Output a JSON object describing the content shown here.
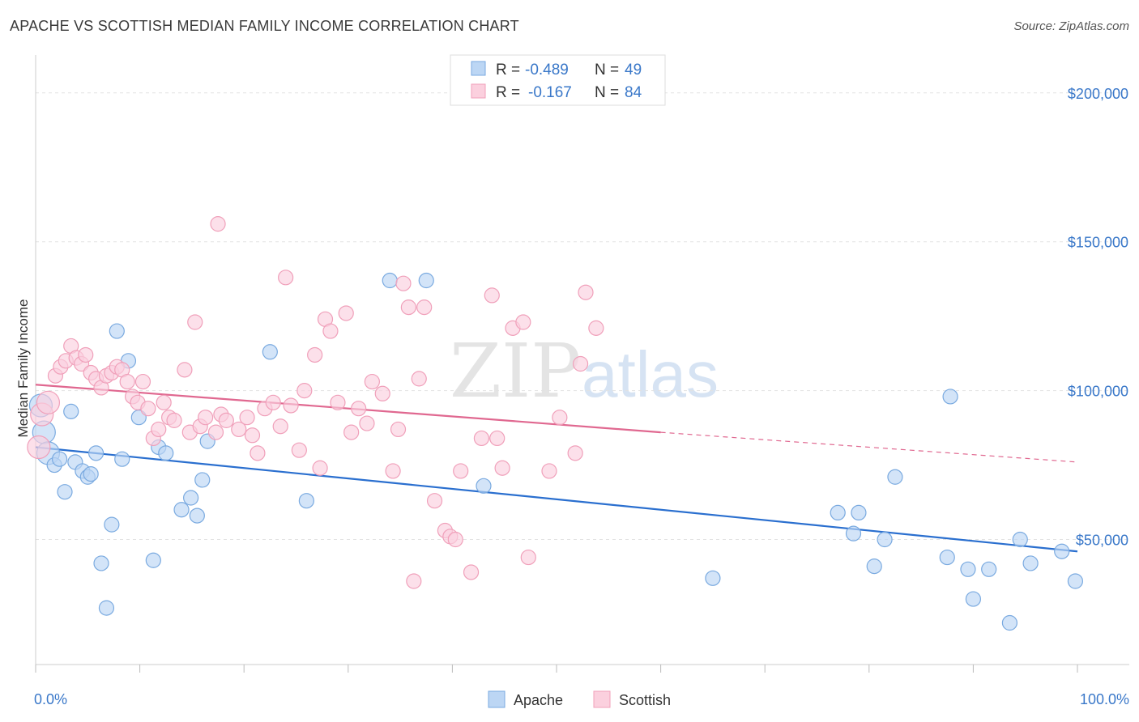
{
  "title": "APACHE VS SCOTTISH MEDIAN FAMILY INCOME CORRELATION CHART",
  "source": "Source: ZipAtlas.com",
  "watermark": {
    "zip": "ZIP",
    "atlas": "atlas"
  },
  "legend": {
    "rows": [
      {
        "r_label": "R =",
        "r_value": "-0.489",
        "n_label": "N =",
        "n_value": "49",
        "color": "#a8c8f0"
      },
      {
        "r_label": "R =",
        "r_value": "-0.167",
        "n_label": "N =",
        "n_value": "84",
        "color": "#f5b8cc"
      }
    ]
  },
  "chart_data": {
    "type": "scatter",
    "title": "APACHE VS SCOTTISH MEDIAN FAMILY INCOME CORRELATION CHART",
    "xlabel": "",
    "ylabel": "Median Family Income",
    "xlim": [
      0,
      100
    ],
    "ylim": [
      8000,
      210000
    ],
    "x_tick_labels": [
      "0.0%",
      "100.0%"
    ],
    "y_ticks": [
      50000,
      100000,
      150000,
      200000
    ],
    "y_tick_labels": [
      "$50,000",
      "$100,000",
      "$150,000",
      "$200,000"
    ],
    "grid": true,
    "legend_position": "top-center",
    "series": [
      {
        "name": "Apache",
        "color": "#7aaae0",
        "fill": "#bcd6f4",
        "trend": {
          "x": [
            0,
            100
          ],
          "y": [
            81000,
            46000
          ],
          "line_color": "#2a6fcf"
        },
        "points": [
          [
            0.5,
            95000
          ],
          [
            0.8,
            86000
          ],
          [
            1.2,
            79000
          ],
          [
            1.8,
            75000
          ],
          [
            2.3,
            77000
          ],
          [
            2.8,
            66000
          ],
          [
            3.4,
            93000
          ],
          [
            3.8,
            76000
          ],
          [
            4.5,
            73000
          ],
          [
            5.0,
            71000
          ],
          [
            5.3,
            72000
          ],
          [
            5.8,
            79000
          ],
          [
            6.3,
            42000
          ],
          [
            6.8,
            27000
          ],
          [
            7.3,
            55000
          ],
          [
            7.8,
            120000
          ],
          [
            8.3,
            77000
          ],
          [
            8.9,
            110000
          ],
          [
            9.9,
            91000
          ],
          [
            11.3,
            43000
          ],
          [
            11.8,
            81000
          ],
          [
            12.5,
            79000
          ],
          [
            14.0,
            60000
          ],
          [
            14.9,
            64000
          ],
          [
            15.5,
            58000
          ],
          [
            16.0,
            70000
          ],
          [
            16.5,
            83000
          ],
          [
            22.5,
            113000
          ],
          [
            26.0,
            63000
          ],
          [
            34.0,
            137000
          ],
          [
            37.5,
            137000
          ],
          [
            43.0,
            68000
          ],
          [
            65.0,
            37000
          ],
          [
            77.0,
            59000
          ],
          [
            78.5,
            52000
          ],
          [
            79.0,
            59000
          ],
          [
            80.5,
            41000
          ],
          [
            81.5,
            50000
          ],
          [
            82.5,
            71000
          ],
          [
            87.5,
            44000
          ],
          [
            87.8,
            98000
          ],
          [
            89.5,
            40000
          ],
          [
            90.0,
            30000
          ],
          [
            91.5,
            40000
          ],
          [
            93.5,
            22000
          ],
          [
            94.5,
            50000
          ],
          [
            95.5,
            42000
          ],
          [
            98.5,
            46000
          ],
          [
            99.8,
            36000
          ]
        ]
      },
      {
        "name": "Scottish",
        "color": "#f0a0ba",
        "fill": "#fbd0de",
        "trend": {
          "x": [
            0,
            60
          ],
          "y": [
            102000,
            86000
          ],
          "dash_x": [
            60,
            100
          ],
          "dash_y": [
            86000,
            76000
          ],
          "line_color": "#e06890"
        },
        "points": [
          [
            0.3,
            81000
          ],
          [
            0.6,
            92000
          ],
          [
            1.2,
            96000
          ],
          [
            1.9,
            105000
          ],
          [
            2.4,
            108000
          ],
          [
            2.9,
            110000
          ],
          [
            3.4,
            115000
          ],
          [
            3.9,
            111000
          ],
          [
            4.4,
            109000
          ],
          [
            4.8,
            112000
          ],
          [
            5.3,
            106000
          ],
          [
            5.8,
            104000
          ],
          [
            6.3,
            101000
          ],
          [
            6.8,
            105000
          ],
          [
            7.3,
            106000
          ],
          [
            7.8,
            108000
          ],
          [
            8.3,
            107000
          ],
          [
            8.8,
            103000
          ],
          [
            9.3,
            98000
          ],
          [
            9.8,
            96000
          ],
          [
            10.3,
            103000
          ],
          [
            10.8,
            94000
          ],
          [
            11.3,
            84000
          ],
          [
            11.8,
            87000
          ],
          [
            12.3,
            96000
          ],
          [
            12.8,
            91000
          ],
          [
            13.3,
            90000
          ],
          [
            14.3,
            107000
          ],
          [
            14.8,
            86000
          ],
          [
            15.3,
            123000
          ],
          [
            15.8,
            88000
          ],
          [
            16.3,
            91000
          ],
          [
            17.3,
            86000
          ],
          [
            17.8,
            92000
          ],
          [
            18.3,
            90000
          ],
          [
            17.5,
            156000
          ],
          [
            19.5,
            87000
          ],
          [
            20.3,
            91000
          ],
          [
            20.8,
            85000
          ],
          [
            21.3,
            79000
          ],
          [
            22.0,
            94000
          ],
          [
            22.8,
            96000
          ],
          [
            23.5,
            88000
          ],
          [
            24.0,
            138000
          ],
          [
            24.5,
            95000
          ],
          [
            25.3,
            80000
          ],
          [
            25.8,
            100000
          ],
          [
            26.8,
            112000
          ],
          [
            27.3,
            74000
          ],
          [
            27.8,
            124000
          ],
          [
            28.3,
            120000
          ],
          [
            29.0,
            96000
          ],
          [
            29.8,
            126000
          ],
          [
            30.3,
            86000
          ],
          [
            31.0,
            94000
          ],
          [
            31.8,
            89000
          ],
          [
            32.3,
            103000
          ],
          [
            33.3,
            99000
          ],
          [
            34.3,
            73000
          ],
          [
            34.8,
            87000
          ],
          [
            35.3,
            136000
          ],
          [
            35.8,
            128000
          ],
          [
            36.3,
            36000
          ],
          [
            36.8,
            104000
          ],
          [
            37.3,
            128000
          ],
          [
            38.3,
            63000
          ],
          [
            39.3,
            53000
          ],
          [
            39.8,
            51000
          ],
          [
            40.3,
            50000
          ],
          [
            40.8,
            73000
          ],
          [
            41.8,
            39000
          ],
          [
            42.8,
            84000
          ],
          [
            43.8,
            132000
          ],
          [
            44.3,
            84000
          ],
          [
            44.8,
            74000
          ],
          [
            45.8,
            121000
          ],
          [
            46.8,
            123000
          ],
          [
            47.3,
            44000
          ],
          [
            49.3,
            73000
          ],
          [
            50.3,
            91000
          ],
          [
            51.8,
            79000
          ],
          [
            52.3,
            109000
          ],
          [
            52.8,
            133000
          ],
          [
            53.8,
            121000
          ]
        ]
      }
    ]
  }
}
